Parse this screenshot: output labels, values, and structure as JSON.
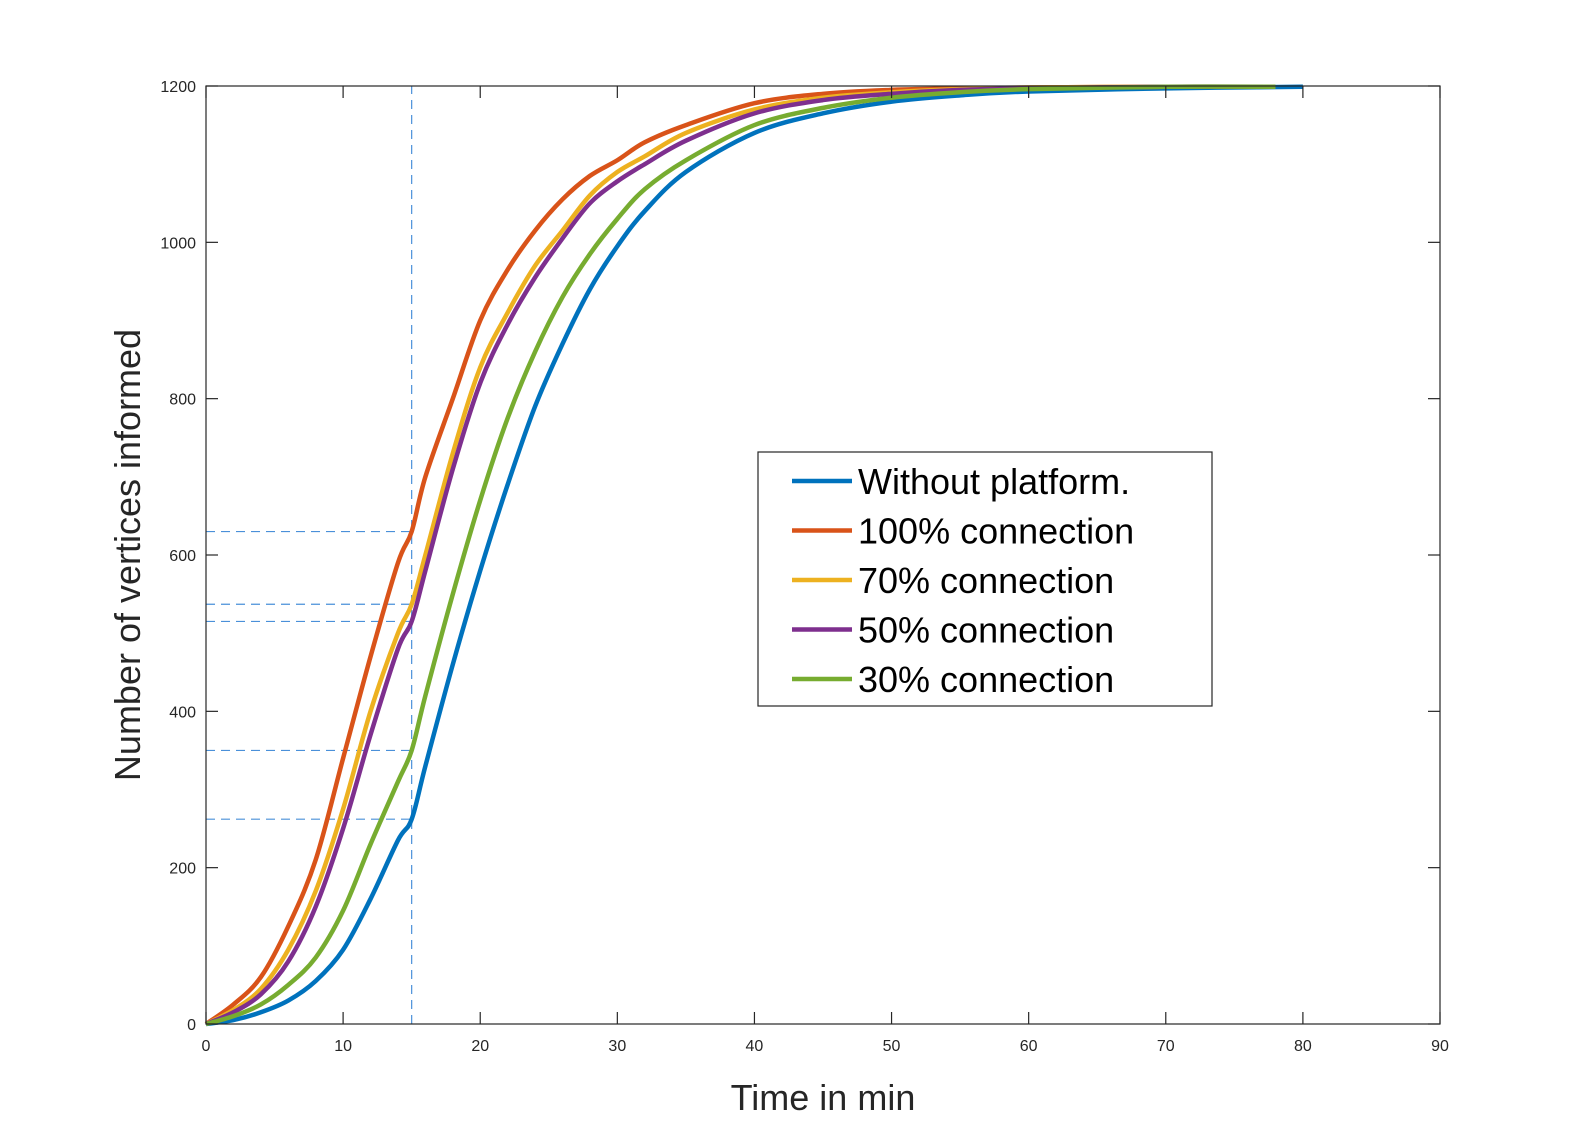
{
  "chart_data": {
    "type": "line",
    "title": "",
    "xlabel": "Time in min",
    "ylabel": "Number of vertices informed",
    "xlim": [
      0,
      90
    ],
    "ylim": [
      0,
      1200
    ],
    "xticks": [
      0,
      10,
      20,
      30,
      40,
      50,
      60,
      70,
      80,
      90
    ],
    "yticks": [
      0,
      200,
      400,
      600,
      800,
      1000,
      1200
    ],
    "xtick_labels": [
      "0",
      "10",
      "20",
      "30",
      "40",
      "50",
      "60",
      "70",
      "80",
      "90"
    ],
    "ytick_labels": [
      "0",
      "200",
      "400",
      "600",
      "800",
      "1000",
      "1200"
    ],
    "grid": false,
    "legend_placement": "center-right",
    "series": [
      {
        "name": "Without platform.",
        "color": "#0072BD",
        "x": [
          0,
          2,
          4,
          6,
          8,
          10,
          12,
          14,
          15,
          16,
          18,
          20,
          22,
          24,
          26,
          28,
          30,
          32,
          35,
          40,
          45,
          50,
          55,
          60,
          70,
          80
        ],
        "y": [
          0,
          5,
          15,
          30,
          55,
          95,
          160,
          235,
          262,
          330,
          460,
          580,
          690,
          790,
          870,
          940,
          995,
          1040,
          1090,
          1140,
          1165,
          1180,
          1188,
          1193,
          1197,
          1199
        ]
      },
      {
        "name": "100% connection",
        "color": "#D95319",
        "x": [
          0,
          2,
          4,
          6,
          8,
          10,
          12,
          14,
          15,
          16,
          18,
          20,
          22,
          24,
          26,
          28,
          30,
          32,
          35,
          40,
          45,
          50,
          55,
          60,
          70,
          78
        ],
        "y": [
          0,
          25,
          60,
          125,
          210,
          340,
          470,
          590,
          630,
          700,
          800,
          900,
          965,
          1015,
          1055,
          1085,
          1105,
          1128,
          1150,
          1178,
          1190,
          1195,
          1197,
          1198,
          1199,
          1199
        ]
      },
      {
        "name": "70% connection",
        "color": "#EDB120",
        "x": [
          0,
          2,
          4,
          6,
          8,
          10,
          12,
          14,
          15,
          16,
          18,
          20,
          22,
          24,
          26,
          28,
          30,
          32,
          35,
          40,
          45,
          50,
          55,
          60,
          70,
          78
        ],
        "y": [
          0,
          18,
          45,
          95,
          170,
          275,
          400,
          500,
          537,
          600,
          730,
          840,
          910,
          970,
          1015,
          1060,
          1090,
          1110,
          1140,
          1170,
          1185,
          1192,
          1196,
          1198,
          1199,
          1199
        ]
      },
      {
        "name": "50% connection",
        "color": "#7E2F8E",
        "x": [
          0,
          2,
          4,
          6,
          8,
          10,
          12,
          14,
          15,
          16,
          18,
          20,
          22,
          24,
          26,
          28,
          30,
          32,
          35,
          40,
          45,
          50,
          55,
          60,
          70,
          78
        ],
        "y": [
          0,
          15,
          38,
          80,
          150,
          250,
          370,
          480,
          515,
          580,
          710,
          820,
          895,
          955,
          1005,
          1050,
          1078,
          1100,
          1130,
          1165,
          1182,
          1190,
          1195,
          1197,
          1199,
          1199
        ]
      },
      {
        "name": "30% connection",
        "color": "#77AC30",
        "x": [
          0,
          2,
          4,
          6,
          8,
          10,
          12,
          14,
          15,
          16,
          18,
          20,
          22,
          24,
          26,
          28,
          30,
          32,
          35,
          40,
          45,
          50,
          55,
          60,
          70,
          78
        ],
        "y": [
          0,
          10,
          25,
          50,
          85,
          145,
          230,
          310,
          350,
          420,
          550,
          670,
          775,
          860,
          930,
          985,
          1030,
          1068,
          1105,
          1150,
          1172,
          1185,
          1192,
          1196,
          1199,
          1199
        ]
      }
    ],
    "reference_lines": {
      "color": "#4A90D9",
      "vertical_x": 15,
      "horizontal_y": [
        630,
        537,
        515,
        350,
        262
      ]
    }
  }
}
